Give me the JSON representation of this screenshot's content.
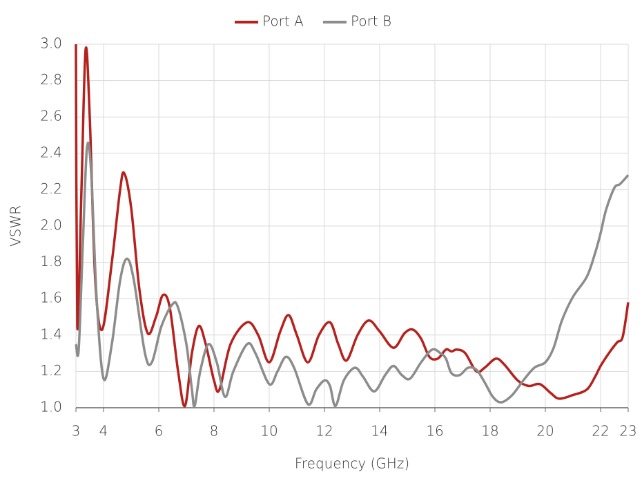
{
  "chart_data": {
    "type": "line",
    "x_label": "Frequency (GHz)",
    "y_label": "VSWR",
    "xlim": [
      3,
      23
    ],
    "ylim": [
      1,
      3
    ],
    "xticks": [
      3,
      4,
      6,
      8,
      10,
      12,
      14,
      16,
      18,
      20,
      22,
      23
    ],
    "yticks": [
      {
        "value": 1,
        "label": "1.0"
      },
      1.2,
      1.4,
      1.6,
      1.8,
      {
        "value": 2,
        "label": "2.0"
      },
      2.2,
      2.4,
      2.6,
      2.8,
      {
        "value": 3,
        "label": "3.0"
      }
    ],
    "grid": true,
    "legend": "top",
    "series": [
      {
        "name": "Port A",
        "color": "#b5221e",
        "x": [
          3.0,
          3.05,
          3.2,
          3.35,
          3.5,
          3.7,
          3.95,
          4.3,
          4.6,
          4.75,
          5.0,
          5.3,
          5.6,
          5.9,
          6.15,
          6.4,
          6.7,
          6.95,
          7.2,
          7.45,
          7.7,
          8.0,
          8.2,
          8.6,
          9.2,
          9.6,
          10.0,
          10.4,
          10.7,
          11.0,
          11.4,
          11.8,
          12.2,
          12.5,
          12.8,
          13.2,
          13.6,
          14.0,
          14.5,
          14.9,
          15.2,
          15.5,
          15.8,
          16.1,
          16.4,
          16.6,
          16.8,
          17.1,
          17.5,
          17.8,
          18.2,
          18.5,
          19.0,
          19.4,
          19.8,
          20.2,
          20.5,
          21.0,
          21.5,
          21.8,
          22.0,
          22.3,
          22.6,
          22.8,
          23.0
        ],
        "values": [
          3.0,
          1.45,
          2.2,
          2.97,
          2.6,
          1.7,
          1.43,
          1.8,
          2.2,
          2.29,
          2.1,
          1.65,
          1.41,
          1.5,
          1.62,
          1.55,
          1.2,
          1.01,
          1.3,
          1.45,
          1.35,
          1.15,
          1.1,
          1.35,
          1.47,
          1.4,
          1.25,
          1.42,
          1.51,
          1.4,
          1.25,
          1.4,
          1.47,
          1.35,
          1.26,
          1.4,
          1.48,
          1.42,
          1.33,
          1.41,
          1.43,
          1.38,
          1.28,
          1.27,
          1.32,
          1.31,
          1.32,
          1.3,
          1.2,
          1.22,
          1.27,
          1.24,
          1.15,
          1.12,
          1.13,
          1.08,
          1.05,
          1.07,
          1.1,
          1.17,
          1.23,
          1.3,
          1.36,
          1.39,
          1.58
        ]
      },
      {
        "name": "Port B",
        "color": "#8c8c8c",
        "x": [
          3.0,
          3.1,
          3.25,
          3.4,
          3.55,
          3.75,
          4.0,
          4.3,
          4.6,
          4.85,
          5.1,
          5.5,
          5.75,
          6.1,
          6.5,
          6.7,
          7.0,
          7.2,
          7.3,
          7.5,
          7.8,
          8.1,
          8.4,
          8.7,
          9.2,
          9.5,
          10.0,
          10.3,
          10.6,
          10.9,
          11.4,
          11.7,
          12.0,
          12.2,
          12.4,
          12.7,
          13.1,
          13.4,
          13.8,
          14.2,
          14.5,
          14.8,
          15.1,
          15.5,
          15.9,
          16.2,
          16.4,
          16.6,
          16.9,
          17.2,
          17.5,
          17.8,
          18.1,
          18.4,
          18.8,
          19.2,
          19.6,
          20.0,
          20.3,
          20.6,
          21.0,
          21.5,
          21.8,
          22.0,
          22.2,
          22.5,
          22.7,
          23.0
        ],
        "values": [
          1.35,
          1.32,
          1.9,
          2.43,
          2.3,
          1.6,
          1.16,
          1.35,
          1.7,
          1.82,
          1.7,
          1.3,
          1.25,
          1.45,
          1.57,
          1.55,
          1.35,
          1.1,
          1.01,
          1.2,
          1.35,
          1.25,
          1.06,
          1.2,
          1.35,
          1.3,
          1.13,
          1.2,
          1.28,
          1.22,
          1.02,
          1.1,
          1.15,
          1.12,
          1.01,
          1.15,
          1.22,
          1.17,
          1.09,
          1.18,
          1.23,
          1.18,
          1.16,
          1.25,
          1.32,
          1.3,
          1.27,
          1.19,
          1.18,
          1.22,
          1.21,
          1.14,
          1.06,
          1.03,
          1.07,
          1.15,
          1.22,
          1.25,
          1.33,
          1.48,
          1.61,
          1.72,
          1.85,
          1.96,
          2.09,
          2.21,
          2.23,
          2.28
        ]
      }
    ]
  }
}
